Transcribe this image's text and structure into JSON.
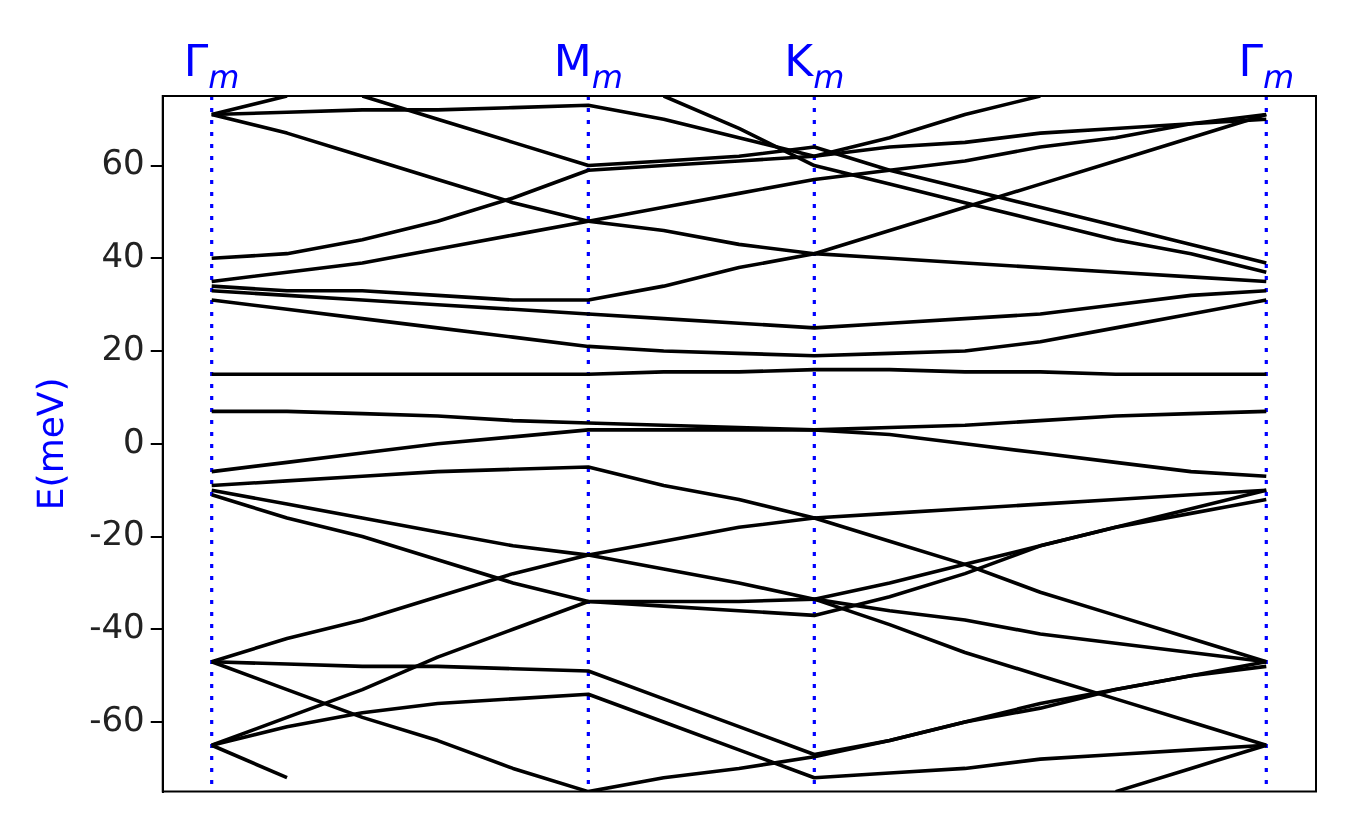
{
  "chart_data": {
    "type": "line",
    "ylabel": "E(meV)",
    "ylim": [
      -75,
      75
    ],
    "yticks": [
      -60,
      -40,
      -20,
      0,
      20,
      40,
      60
    ],
    "categories": [
      "Γ$_{m}$",
      null,
      null,
      null,
      null,
      "M$_{m}$",
      null,
      null,
      "K$_{m}$",
      null,
      null,
      null,
      null,
      null,
      "Γ$_{m}$"
    ],
    "grid": "x",
    "legend": false,
    "marker": "none",
    "line_style": "solid",
    "series": [
      {
        "color": "#000000",
        "values": [
          15,
          15,
          15,
          15,
          15,
          15,
          15.5,
          15.5,
          16,
          16,
          15.5,
          15.5,
          15,
          15,
          15
        ]
      },
      {
        "color": "#000000",
        "values": [
          7,
          7,
          6.5,
          6,
          5,
          4.5,
          4,
          3.5,
          3,
          3.5,
          4,
          5,
          6,
          6.5,
          7
        ]
      },
      {
        "color": "#000000",
        "values": [
          31,
          29,
          27,
          25,
          23,
          21,
          20,
          19.5,
          19,
          19.5,
          20,
          22,
          25,
          28,
          31
        ]
      },
      {
        "color": "#000000",
        "values": [
          33,
          32,
          31,
          30,
          29,
          28,
          27,
          26,
          25,
          26,
          27,
          28,
          30,
          32,
          33
        ]
      },
      {
        "color": "#000000",
        "values": [
          34,
          33,
          33,
          32,
          31,
          31,
          34,
          38,
          41,
          40,
          39,
          38,
          37,
          36,
          35
        ]
      },
      {
        "color": "#000000",
        "values": [
          35,
          37,
          39,
          42,
          45,
          48,
          51,
          54,
          57,
          59,
          61,
          64,
          66,
          69,
          71
        ]
      },
      {
        "color": "#000000",
        "values": [
          40,
          41,
          44,
          48,
          53,
          59,
          60,
          61,
          62,
          66,
          71,
          75,
          null,
          null,
          null
        ]
      },
      {
        "color": "#000000",
        "values": [
          71,
          67,
          62,
          57,
          52,
          48,
          46,
          43,
          41,
          46,
          51,
          56,
          61,
          66,
          71
        ]
      },
      {
        "color": "#000000",
        "values": [
          71,
          71.5,
          72,
          72,
          72.5,
          73,
          70,
          66,
          62,
          64,
          65,
          67,
          68,
          69,
          70
        ]
      },
      {
        "color": "#000000",
        "values": [
          71,
          75,
          null,
          null,
          null,
          null,
          null,
          null,
          null,
          null,
          null,
          null,
          null,
          null,
          null
        ]
      },
      {
        "color": "#000000",
        "values": [
          null,
          null,
          75,
          70,
          65,
          60,
          61,
          62,
          64,
          59,
          55,
          51,
          47,
          43,
          39
        ]
      },
      {
        "color": "#000000",
        "values": [
          null,
          null,
          null,
          null,
          null,
          null,
          75,
          68,
          60,
          56,
          52,
          48,
          44,
          41,
          37
        ]
      },
      {
        "color": "#000000",
        "values": [
          -6,
          -4,
          -2,
          0,
          1.5,
          3,
          3,
          3,
          3,
          2,
          0,
          -2,
          -4,
          -6,
          -7
        ]
      },
      {
        "color": "#000000",
        "values": [
          -9,
          -8,
          -7,
          -6,
          -5.5,
          -5,
          -9,
          -12,
          -16,
          -15,
          -14,
          -13,
          -12,
          -11,
          -10
        ]
      },
      {
        "color": "#000000",
        "values": [
          -10,
          -13,
          -16,
          -19,
          -22,
          -24,
          -27,
          -30,
          -33.5,
          -36,
          -38,
          -41,
          -43,
          -45,
          -47
        ]
      },
      {
        "color": "#000000",
        "values": [
          -11,
          -16,
          -20,
          -25,
          -30,
          -34,
          -35,
          -36,
          -37,
          -33,
          -28,
          -22,
          -18,
          -14,
          -10
        ]
      },
      {
        "color": "#000000",
        "values": [
          -47,
          -42,
          -38,
          -33,
          -28,
          -24,
          -21,
          -18,
          -16,
          -21,
          -26,
          -32,
          -37,
          -42,
          -47
        ]
      },
      {
        "color": "#000000",
        "values": [
          -47,
          -47.5,
          -48,
          -48,
          -48.5,
          -49,
          -55,
          -61,
          -67,
          -64,
          -60,
          -56,
          -53,
          -50,
          -48
        ]
      },
      {
        "color": "#000000",
        "values": [
          -47,
          -53,
          -59,
          -64,
          -70,
          -75,
          null,
          null,
          null,
          null,
          null,
          null,
          null,
          null,
          null
        ]
      },
      {
        "color": "#000000",
        "values": [
          -65,
          -59,
          -53,
          -46,
          -40,
          -34,
          -34,
          -34,
          -33.5,
          -30,
          -26,
          -22,
          -18,
          -15,
          -12
        ]
      },
      {
        "color": "#000000",
        "values": [
          -65,
          -61,
          -58,
          -56,
          -55,
          -54,
          -60,
          -66,
          -72,
          -71,
          -70,
          -68,
          -67,
          -66,
          -65
        ]
      },
      {
        "color": "#000000",
        "values": [
          -65,
          -72,
          null,
          null,
          null,
          null,
          null,
          null,
          null,
          null,
          null,
          null,
          null,
          null,
          null
        ]
      },
      {
        "color": "#000000",
        "values": [
          null,
          null,
          null,
          null,
          null,
          -75,
          -72,
          -70,
          -67.5,
          -64,
          -60,
          -57,
          -53,
          -50,
          -47
        ]
      },
      {
        "color": "#000000",
        "values": [
          null,
          null,
          null,
          null,
          null,
          null,
          null,
          null,
          -33.5,
          -39,
          -45,
          -50,
          -55,
          -60,
          -65
        ]
      },
      {
        "color": "#000000",
        "values": [
          null,
          null,
          null,
          null,
          null,
          null,
          null,
          null,
          null,
          null,
          null,
          null,
          -75,
          -70,
          -65
        ]
      }
    ]
  }
}
